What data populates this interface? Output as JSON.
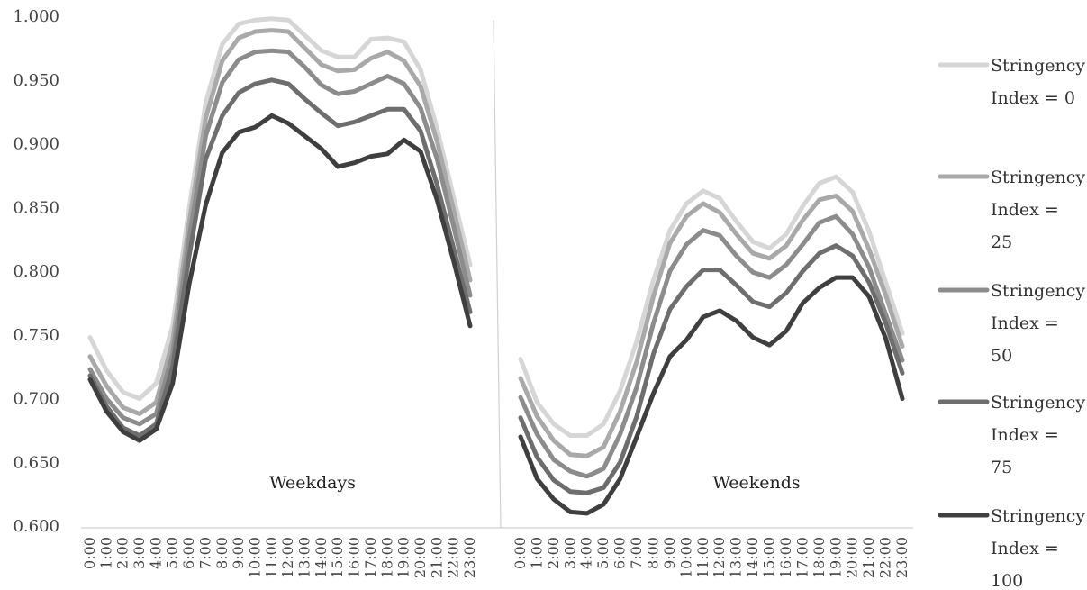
{
  "chart_data": {
    "type": "line",
    "ylim": [
      0.6,
      1.0
    ],
    "yticks": [
      "0.600",
      "0.650",
      "0.700",
      "0.750",
      "0.800",
      "0.850",
      "0.900",
      "0.950",
      "1.000"
    ],
    "categories": [
      "0:00",
      "1:00",
      "2:00",
      "3:00",
      "4:00",
      "5:00",
      "6:00",
      "7:00",
      "8:00",
      "9:00",
      "10:00",
      "11:00",
      "12:00",
      "13:00",
      "14:00",
      "15:00",
      "16:00",
      "17:00",
      "18:00",
      "19:00",
      "20:00",
      "21:00",
      "22:00",
      "23:00"
    ],
    "grid": false,
    "legend_position": "right",
    "panels": [
      {
        "label": "Weekdays",
        "series": [
          {
            "name": "Stringency Index = 0",
            "color": "#d6d6d6",
            "values": [
              0.748,
              0.722,
              0.705,
              0.7,
              0.712,
              0.757,
              0.85,
              0.932,
              0.978,
              0.994,
              0.997,
              0.998,
              0.997,
              0.985,
              0.973,
              0.968,
              0.968,
              0.982,
              0.983,
              0.98,
              0.958,
              0.912,
              0.858,
              0.805
            ]
          },
          {
            "name": "Stringency Index = 25",
            "color": "#a9a9a9",
            "values": [
              0.733,
              0.71,
              0.693,
              0.688,
              0.697,
              0.745,
              0.838,
              0.92,
              0.965,
              0.983,
              0.988,
              0.989,
              0.988,
              0.975,
              0.962,
              0.957,
              0.958,
              0.967,
              0.972,
              0.965,
              0.945,
              0.902,
              0.848,
              0.793
            ]
          },
          {
            "name": "Stringency Index = 50",
            "color": "#8c8c8c",
            "values": [
              0.723,
              0.7,
              0.685,
              0.68,
              0.688,
              0.735,
              0.826,
              0.906,
              0.948,
              0.966,
              0.972,
              0.973,
              0.972,
              0.96,
              0.946,
              0.939,
              0.941,
              0.947,
              0.953,
              0.947,
              0.928,
              0.888,
              0.835,
              0.781
            ]
          },
          {
            "name": "Stringency Index = 75",
            "color": "#6e6e6e",
            "values": [
              0.718,
              0.694,
              0.677,
              0.671,
              0.68,
              0.725,
              0.812,
              0.888,
              0.922,
              0.94,
              0.947,
              0.95,
              0.947,
              0.935,
              0.924,
              0.914,
              0.917,
              0.922,
              0.927,
              0.927,
              0.91,
              0.868,
              0.818,
              0.768
            ]
          },
          {
            "name": "Stringency Index = 100",
            "color": "#3f3f3f",
            "values": [
              0.715,
              0.69,
              0.674,
              0.667,
              0.676,
              0.712,
              0.79,
              0.852,
              0.893,
              0.909,
              0.913,
              0.922,
              0.916,
              0.906,
              0.896,
              0.882,
              0.885,
              0.89,
              0.892,
              0.903,
              0.894,
              0.856,
              0.808,
              0.757
            ]
          }
        ]
      },
      {
        "label": "Weekends",
        "series": [
          {
            "name": "Stringency Index = 0",
            "color": "#d6d6d6",
            "values": [
              0.731,
              0.697,
              0.68,
              0.671,
              0.671,
              0.68,
              0.706,
              0.745,
              0.793,
              0.832,
              0.853,
              0.863,
              0.857,
              0.839,
              0.823,
              0.818,
              0.829,
              0.851,
              0.869,
              0.874,
              0.862,
              0.831,
              0.791,
              0.751
            ]
          },
          {
            "name": "Stringency Index = 25",
            "color": "#a9a9a9",
            "values": [
              0.716,
              0.686,
              0.667,
              0.656,
              0.655,
              0.662,
              0.69,
              0.729,
              0.78,
              0.822,
              0.843,
              0.853,
              0.846,
              0.829,
              0.814,
              0.81,
              0.82,
              0.84,
              0.856,
              0.859,
              0.847,
              0.817,
              0.781,
              0.741
            ]
          },
          {
            "name": "Stringency Index = 50",
            "color": "#8c8c8c",
            "values": [
              0.701,
              0.672,
              0.652,
              0.643,
              0.639,
              0.645,
              0.672,
              0.709,
              0.759,
              0.8,
              0.821,
              0.832,
              0.828,
              0.812,
              0.799,
              0.795,
              0.805,
              0.821,
              0.838,
              0.843,
              0.829,
              0.803,
              0.766,
              0.73
            ]
          },
          {
            "name": "Stringency Index = 75",
            "color": "#6e6e6e",
            "values": [
              0.685,
              0.654,
              0.636,
              0.627,
              0.626,
              0.63,
              0.65,
              0.686,
              0.735,
              0.77,
              0.788,
              0.801,
              0.801,
              0.789,
              0.776,
              0.772,
              0.783,
              0.8,
              0.814,
              0.82,
              0.812,
              0.791,
              0.759,
              0.72
            ]
          },
          {
            "name": "Stringency Index = 100",
            "color": "#3f3f3f",
            "values": [
              0.67,
              0.637,
              0.621,
              0.611,
              0.61,
              0.617,
              0.637,
              0.67,
              0.704,
              0.733,
              0.746,
              0.764,
              0.769,
              0.761,
              0.748,
              0.742,
              0.753,
              0.775,
              0.787,
              0.795,
              0.795,
              0.78,
              0.747,
              0.7
            ]
          }
        ]
      }
    ],
    "legend": {
      "entries": [
        {
          "lines": [
            "Stringency",
            "Index  =  0"
          ],
          "color": "#d6d6d6"
        },
        {
          "lines": [
            "Stringency",
            "Index  =",
            "25"
          ],
          "color": "#a9a9a9"
        },
        {
          "lines": [
            "Stringency",
            "Index  =",
            "50"
          ],
          "color": "#8c8c8c"
        },
        {
          "lines": [
            "Stringency",
            "Index  =",
            "75"
          ],
          "color": "#6e6e6e"
        },
        {
          "lines": [
            "Stringency",
            "Index  =",
            "100"
          ],
          "color": "#3f3f3f"
        }
      ]
    }
  }
}
